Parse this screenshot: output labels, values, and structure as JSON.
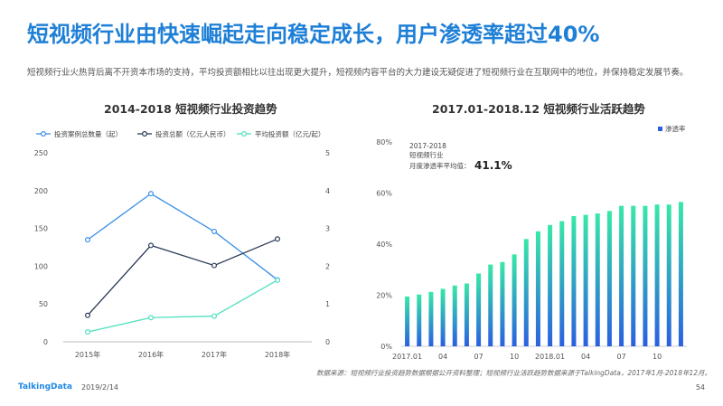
{
  "page": {
    "title": "短视频行业由快速崛起走向稳定成长，用户渗透率超过40%",
    "subtitle": "短视频行业火热背后离不开资本市场的支持，平均投资额相比以往出现更大提升，短视频内容平台的大力建设无疑促进了短视频行业在互联网中的地位，并保持稳定发展节奏。",
    "source": "数据来源：短视频行业投资趋势数据根据公开资料整理；短视频行业活跃趋势数据来源于TalkingData，2017年1月-2018年12月。",
    "brand": "TalkingData",
    "date": "2019/2/14",
    "page_number": "54"
  },
  "chart_data": [
    {
      "type": "line",
      "title": "2014-2018  短视频行业投资趋势",
      "categories": [
        "2015年",
        "2016年",
        "2017年",
        "2018年"
      ],
      "ylim_left": [
        0,
        250
      ],
      "yticks_left": [
        "0",
        "50",
        "100",
        "150",
        "200",
        "250"
      ],
      "ylim_right": [
        0,
        5
      ],
      "yticks_right": [
        "0",
        "1",
        "2",
        "3",
        "4",
        "5"
      ],
      "legend_position": "top",
      "grid": false,
      "series": [
        {
          "name": "投资案例总数量（起）",
          "axis": "left",
          "color": "#3a8ee6",
          "values": [
            135,
            196,
            146,
            82
          ]
        },
        {
          "name": "投资总额（亿元人民币）",
          "axis": "right",
          "color": "#2b3a57",
          "values": [
            0.7,
            2.55,
            2.02,
            2.72
          ]
        },
        {
          "name": "平均投资额（亿元/起）",
          "axis": "right",
          "color": "#4fe0c0",
          "values": [
            0.26,
            0.64,
            0.68,
            1.63
          ]
        }
      ]
    },
    {
      "type": "bar",
      "title": "2017.01-2018.12  短视频行业活跃趋势",
      "legend": "渗透率",
      "legend_position": "top-right",
      "annotation_line1": "2017-2018",
      "annotation_line2": "短视频行业",
      "annotation_line3": "月度渗透率平均值：",
      "annotation_value": "41.1%",
      "ylim": [
        0,
        80
      ],
      "yticks": [
        "0%",
        "20%",
        "40%",
        "60%",
        "80%"
      ],
      "xtick_labels": [
        "2017.01",
        "04",
        "07",
        "10",
        "2018.01",
        "04",
        "07",
        "10"
      ],
      "xtick_indices": [
        0,
        3,
        6,
        9,
        12,
        15,
        18,
        21
      ],
      "categories": [
        "2017.01",
        "2017.02",
        "2017.03",
        "2017.04",
        "2017.05",
        "2017.06",
        "2017.07",
        "2017.08",
        "2017.09",
        "2017.10",
        "2017.11",
        "2017.12",
        "2018.01",
        "2018.02",
        "2018.03",
        "2018.04",
        "2018.05",
        "2018.06",
        "2018.07",
        "2018.08",
        "2018.09",
        "2018.10",
        "2018.11",
        "2018.12"
      ],
      "values": [
        19.5,
        20.3,
        21.3,
        22.5,
        23.8,
        24.6,
        28.5,
        32.0,
        33.0,
        36.0,
        42.0,
        45.0,
        47.5,
        49.0,
        51.0,
        51.5,
        52.0,
        53.0,
        55.0,
        55.0,
        55.0,
        55.5,
        55.5,
        56.5
      ],
      "gradient_top": "#38e8a8",
      "gradient_bottom": "#2a5fe0"
    }
  ]
}
